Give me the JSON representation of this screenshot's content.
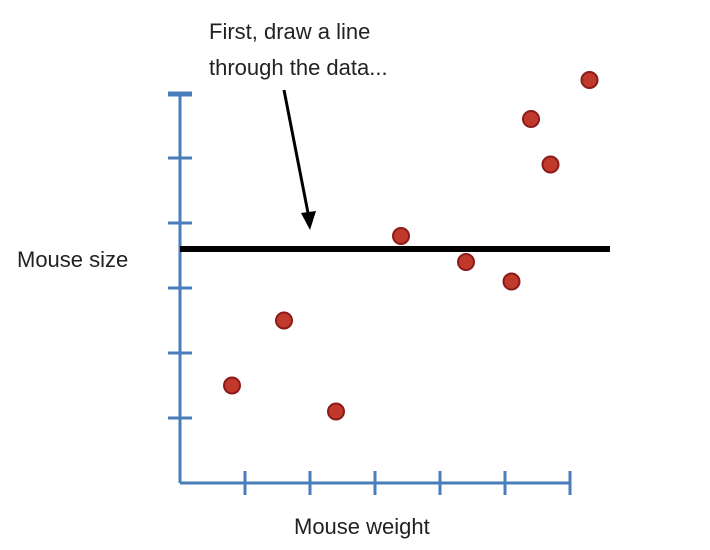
{
  "chart_data": {
    "type": "scatter",
    "title": "",
    "xlabel": "Mouse weight",
    "ylabel": "Mouse size",
    "annotation": {
      "line1": "First, draw a line",
      "line2": "through the data..."
    },
    "xlim": [
      0,
      6
    ],
    "ylim": [
      0,
      6
    ],
    "x_ticks": [
      1,
      2,
      3,
      4,
      5,
      6
    ],
    "y_ticks": [
      1,
      2,
      3,
      4,
      5,
      6
    ],
    "grid": false,
    "points": [
      {
        "x": 0.8,
        "y": 1.5
      },
      {
        "x": 1.6,
        "y": 2.5
      },
      {
        "x": 2.4,
        "y": 1.1
      },
      {
        "x": 3.4,
        "y": 3.8
      },
      {
        "x": 4.4,
        "y": 3.4
      },
      {
        "x": 5.1,
        "y": 3.1
      },
      {
        "x": 5.4,
        "y": 5.6
      },
      {
        "x": 5.7,
        "y": 4.9
      },
      {
        "x": 6.3,
        "y": 6.2
      }
    ],
    "fit_line": {
      "y": 3.6
    },
    "colors": {
      "axis": "#4a7ebb",
      "point_fill": "#c0392b",
      "point_stroke": "#8b1a1a",
      "line": "#000000"
    }
  }
}
